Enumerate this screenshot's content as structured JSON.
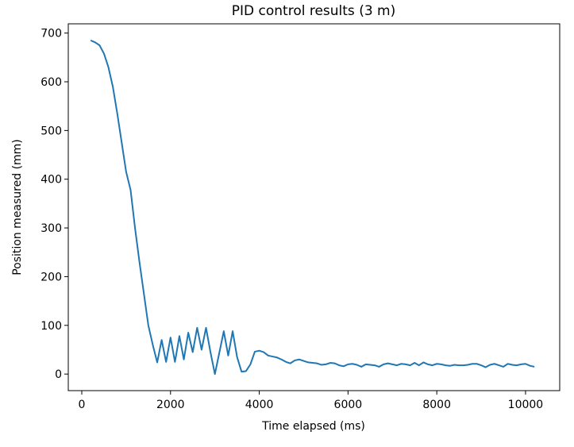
{
  "chart_data": {
    "type": "line",
    "title": "PID control results (3 m)",
    "x_label": "Time elapsed (ms)",
    "y_label": "Position measured (mm)",
    "x": [
      200,
      300,
      400,
      500,
      600,
      700,
      800,
      900,
      1000,
      1100,
      1200,
      1300,
      1400,
      1500,
      1600,
      1700,
      1800,
      1900,
      2000,
      2100,
      2200,
      2300,
      2400,
      2500,
      2600,
      2700,
      2800,
      2900,
      3000,
      3200,
      3300,
      3400,
      3500,
      3600,
      3700,
      3800,
      3900,
      4000,
      4100,
      4200,
      4300,
      4400,
      4500,
      4600,
      4700,
      4800,
      4900,
      5000,
      5100,
      5200,
      5300,
      5400,
      5500,
      5600,
      5700,
      5800,
      5900,
      6000,
      6100,
      6200,
      6300,
      6400,
      6500,
      6600,
      6700,
      6800,
      6900,
      7000,
      7100,
      7200,
      7300,
      7400,
      7500,
      7600,
      7700,
      7800,
      7900,
      8000,
      8100,
      8200,
      8300,
      8400,
      8500,
      8600,
      8700,
      8800,
      8900,
      9000,
      9100,
      9200,
      9300,
      9400,
      9500,
      9600,
      9700,
      9800,
      9900,
      10000,
      10100,
      10200
    ],
    "series": [
      {
        "color": "#1f77b4",
        "values": [
          685,
          681,
          675,
          658,
          630,
          590,
          535,
          475,
          415,
          378,
          300,
          230,
          165,
          100,
          60,
          24,
          70,
          25,
          75,
          25,
          78,
          30,
          85,
          45,
          95,
          50,
          95,
          45,
          0,
          88,
          38,
          88,
          35,
          5,
          6,
          20,
          46,
          48,
          45,
          38,
          36,
          34,
          30,
          25,
          22,
          28,
          30,
          27,
          24,
          23,
          22,
          19,
          20,
          23,
          22,
          18,
          16,
          20,
          21,
          19,
          15,
          20,
          19,
          18,
          15,
          20,
          22,
          20,
          18,
          21,
          20,
          18,
          23,
          18,
          24,
          20,
          18,
          21,
          20,
          18,
          17,
          19,
          18,
          18,
          19,
          21,
          21,
          18,
          14,
          19,
          21,
          18,
          15,
          21,
          19,
          18,
          20,
          21,
          17,
          15
        ]
      }
    ],
    "xlim": [
      -304,
      10770
    ],
    "ylim": [
      -34,
      719
    ],
    "xticks": [
      0,
      2000,
      4000,
      6000,
      8000,
      10000
    ],
    "yticks": [
      0,
      100,
      200,
      300,
      400,
      500,
      600,
      700
    ]
  }
}
